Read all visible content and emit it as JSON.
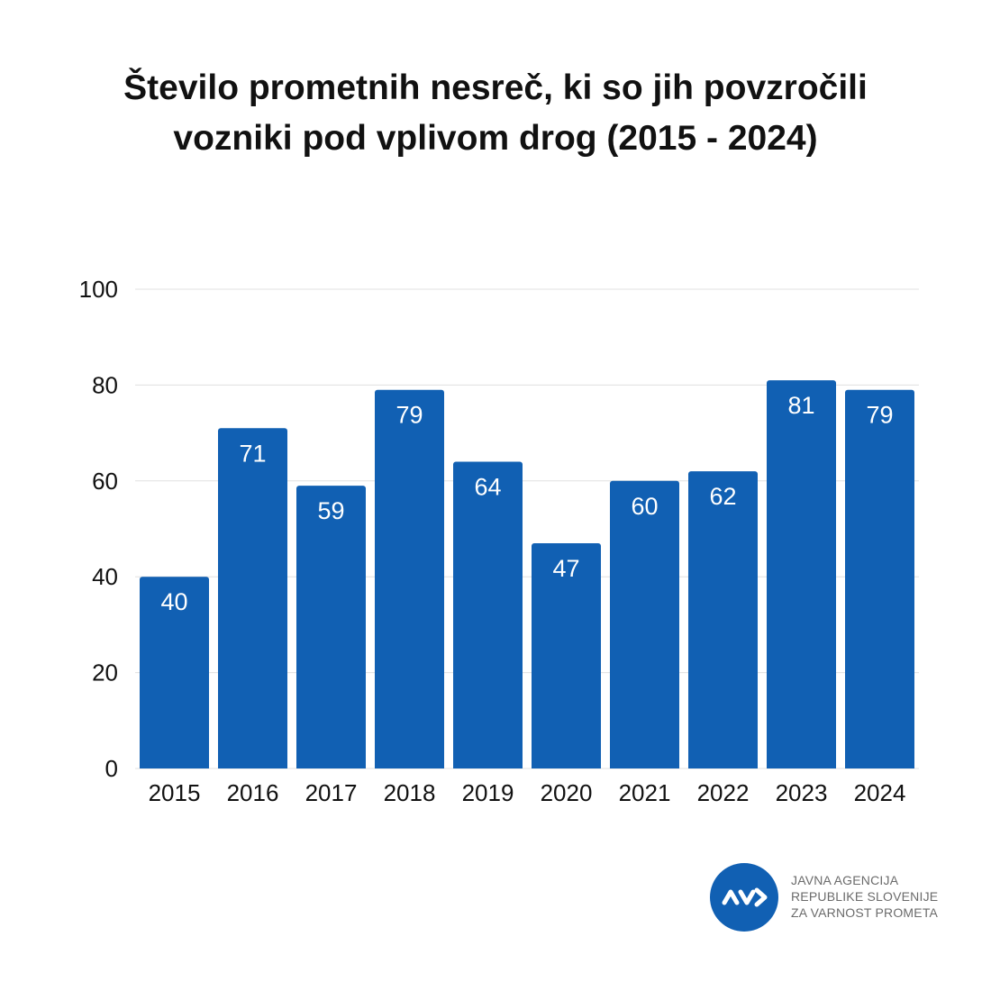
{
  "chart_data": {
    "type": "bar",
    "title": "Število prometnih nesreč, ki so jih povzročili vozniki pod vplivom drog (2015 - 2024)",
    "title_lines": [
      "Število prometnih nesreč, ki so jih povzročili",
      "vozniki pod vplivom drog (2015 - 2024)"
    ],
    "categories": [
      "2015",
      "2016",
      "2017",
      "2018",
      "2019",
      "2020",
      "2021",
      "2022",
      "2023",
      "2024"
    ],
    "values": [
      40,
      71,
      59,
      79,
      64,
      47,
      60,
      62,
      81,
      79
    ],
    "xlabel": "",
    "ylabel": "",
    "ylim": [
      0,
      100
    ],
    "yticks": [
      0,
      20,
      40,
      60,
      80,
      100
    ],
    "grid": true,
    "data_labels": true,
    "bar_color": "#1160b3",
    "label_color": "#ffffff",
    "grid_color": "#e0e0e0"
  },
  "logo": {
    "icon": "avp-logo-icon",
    "color": "#1160b3",
    "lines": [
      "JAVNA AGENCIJA",
      "REPUBLIKE SLOVENIJE",
      "ZA VARNOST PROMETA"
    ]
  }
}
